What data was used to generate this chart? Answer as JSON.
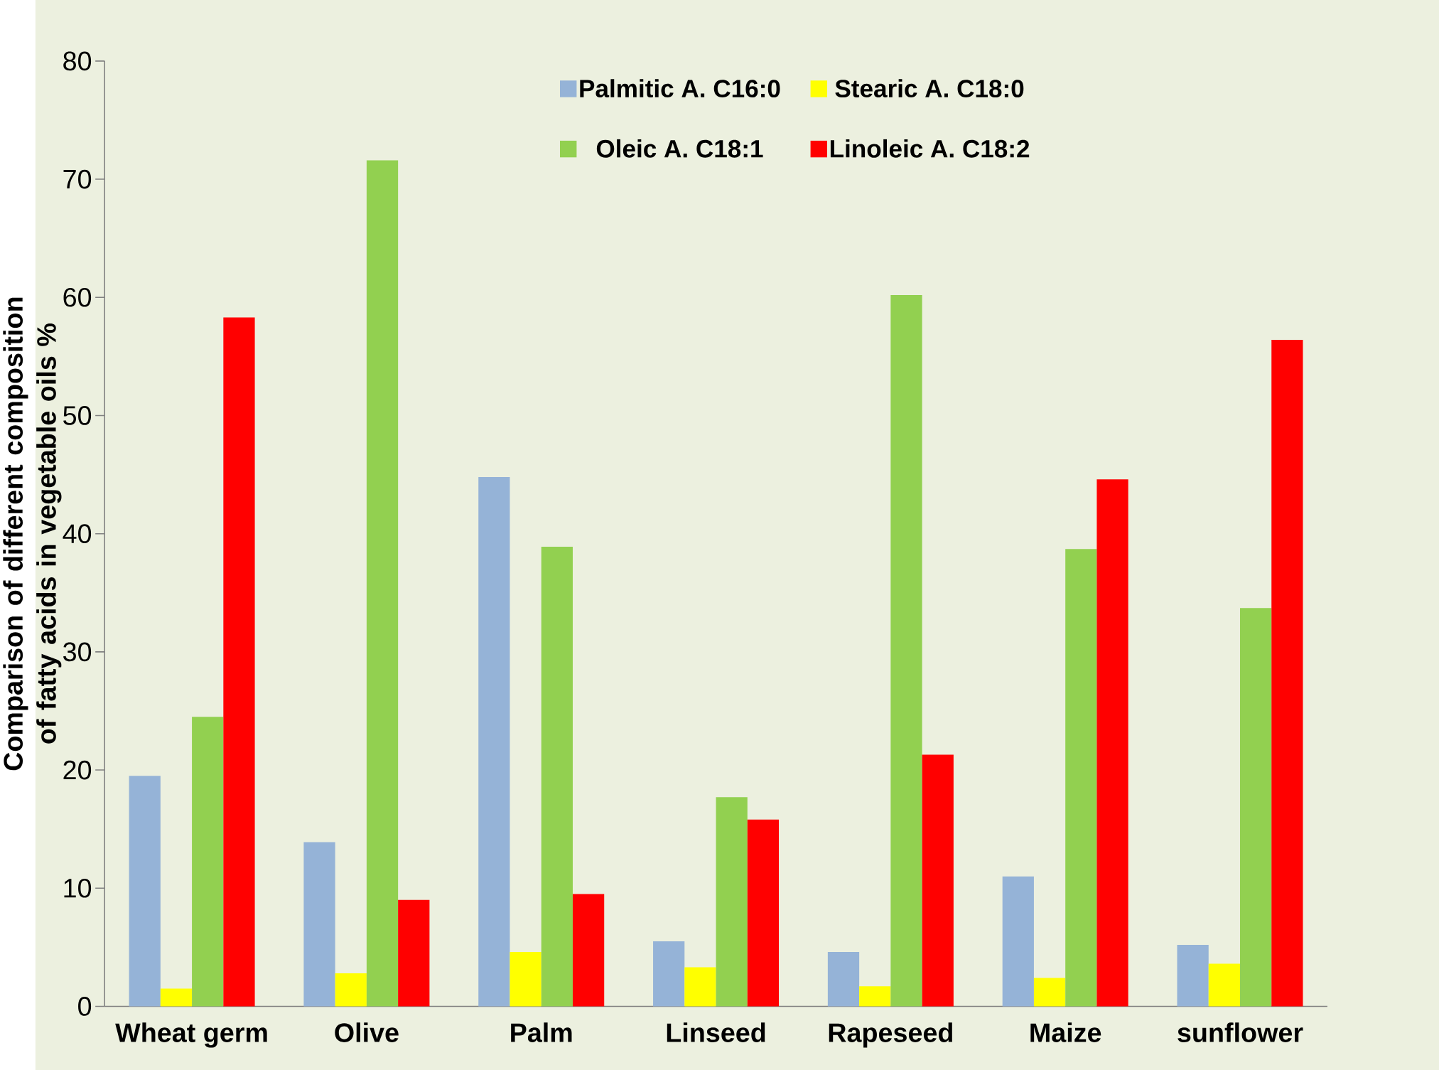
{
  "chart_data": {
    "type": "bar",
    "ylabel": "Comparison of different composition of fatty acids in vegetable oils %",
    "categories": [
      "Wheat germ",
      "Olive",
      "Palm",
      "Linseed",
      "Rapeseed",
      "Maize",
      "sunflower"
    ],
    "series": [
      {
        "name": "Palmitic A. C16:0",
        "color": "#95b3d7",
        "values": [
          19.5,
          13.9,
          44.8,
          5.5,
          4.6,
          11.0,
          5.2
        ]
      },
      {
        "name": "Stearic A. C18:0",
        "color": "#ffff00",
        "values": [
          1.5,
          2.8,
          4.6,
          3.3,
          1.7,
          2.4,
          3.6
        ]
      },
      {
        "name": "Oleic A. C18:1",
        "color": "#92d050",
        "values": [
          24.5,
          71.6,
          38.9,
          17.7,
          60.2,
          38.7,
          33.7
        ]
      },
      {
        "name": "Linoleic A. C18:2",
        "color": "#ff0000",
        "values": [
          58.3,
          9.0,
          9.5,
          15.8,
          21.3,
          44.6,
          56.4
        ]
      }
    ],
    "ylim": [
      0,
      80
    ],
    "yticks": [
      0,
      10,
      20,
      30,
      40,
      50,
      60,
      70,
      80
    ],
    "legend": "top"
  }
}
